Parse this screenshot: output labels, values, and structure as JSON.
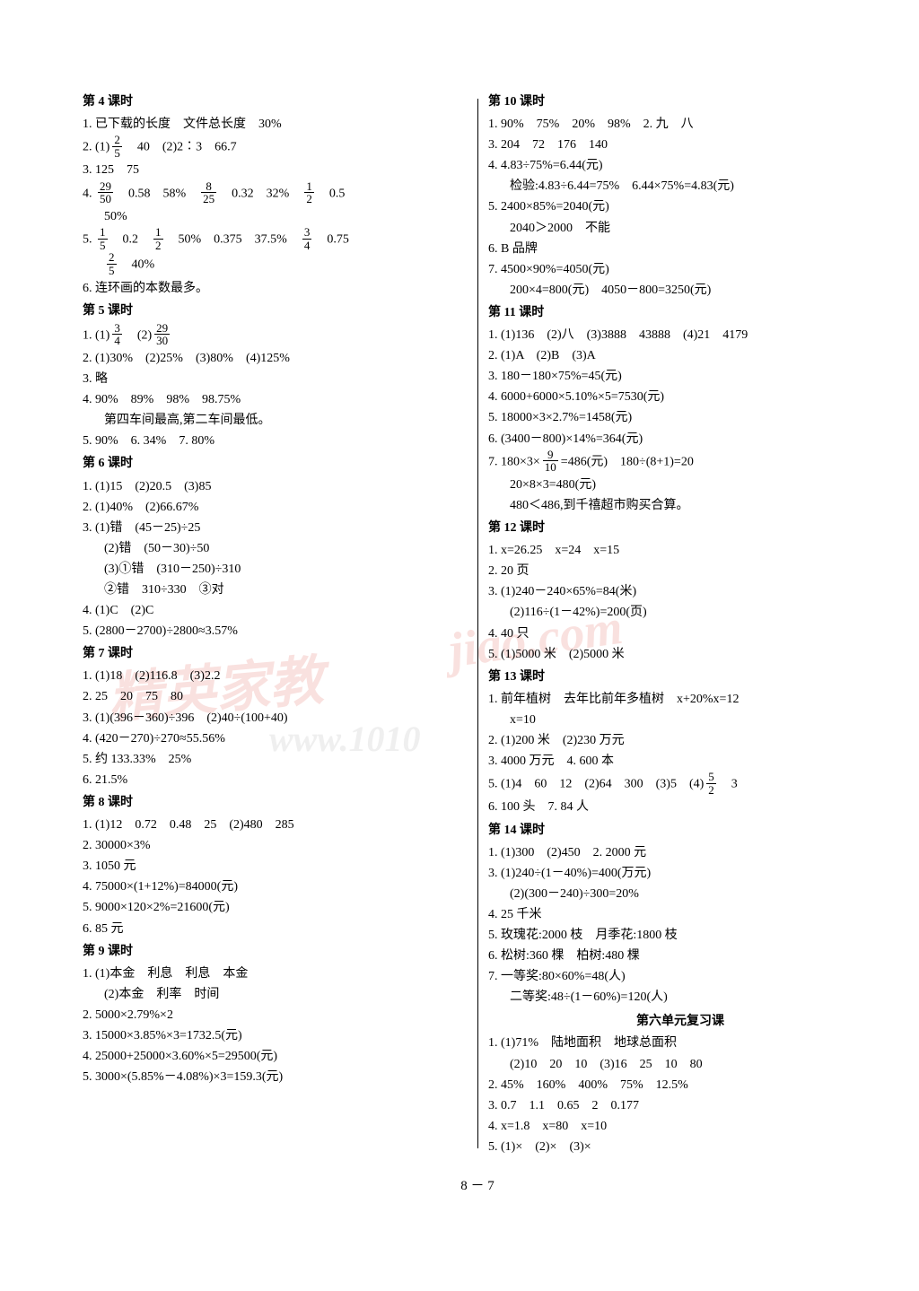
{
  "footer": "8 － 7",
  "unit6_title": "第六单元复习课",
  "left": {
    "s4": {
      "title": "第 4 课时",
      "l1": "1. 已下载的长度　文件总长度　30%",
      "l2a": "2. (1)",
      "l2b": "　40　(2)2∶3　66.7",
      "l3": "3. 125　75",
      "l4a": "4. ",
      "l4b": "　0.58　58%　",
      "l4c": "　0.32　32%　",
      "l4d": "　0.5",
      "l4e": "50%",
      "l5a": "5. ",
      "l5b": "　0.2　",
      "l5c": "　50%　0.375　37.5%　",
      "l5d": "　0.75",
      "l5e": "　40%",
      "l6": "6. 连环画的本数最多。"
    },
    "s5": {
      "title": "第 5 课时",
      "l1a": "1. (1)",
      "l1b": "　(2)",
      "l2": "2. (1)30%　(2)25%　(3)80%　(4)125%",
      "l3": "3. 略",
      "l4": "4. 90%　89%　98%　98.75%",
      "l4b": "第四车间最高,第二车间最低。",
      "l5": "5. 90%　6. 34%　7. 80%"
    },
    "s6": {
      "title": "第 6 课时",
      "l1": "1. (1)15　(2)20.5　(3)85",
      "l2": "2. (1)40%　(2)66.67%",
      "l3": "3. (1)错　(45－25)÷25",
      "l3b": "(2)错　(50－30)÷50",
      "l3c": "(3)①错　(310－250)÷310",
      "l3d": "②错　310÷330　③对",
      "l4": "4. (1)C　(2)C",
      "l5": "5. (2800－2700)÷2800≈3.57%"
    },
    "s7": {
      "title": "第 7 课时",
      "l1": "1. (1)18　(2)116.8　(3)2.2",
      "l2": "2. 25　20　75　80",
      "l3": "3. (1)(396－360)÷396　(2)40÷(100+40)",
      "l4": "4. (420－270)÷270≈55.56%",
      "l5": "5. 约 133.33%　25%",
      "l6": "6. 21.5%"
    },
    "s8": {
      "title": "第 8 课时",
      "l1": "1. (1)12　0.72　0.48　25　(2)480　285",
      "l2": "2. 30000×3%",
      "l3": "3. 1050 元",
      "l4": "4. 75000×(1+12%)=84000(元)",
      "l5": "5. 9000×120×2%=21600(元)",
      "l6": "6. 85 元"
    },
    "s9": {
      "title": "第 9 课时",
      "l1": "1. (1)本金　利息　利息　本金",
      "l1b": "(2)本金　利率　时间",
      "l2": "2. 5000×2.79%×2",
      "l3": "3. 15000×3.85%×3=1732.5(元)",
      "l4": "4. 25000+25000×3.60%×5=29500(元)",
      "l5": "5. 3000×(5.85%－4.08%)×3=159.3(元)"
    }
  },
  "right": {
    "s10": {
      "title": "第 10 课时",
      "l1": "1. 90%　75%　20%　98%　2. 九　八",
      "l3": "3. 204　72　176　140",
      "l4": "4. 4.83÷75%=6.44(元)",
      "l4b": "检验:4.83÷6.44=75%　6.44×75%=4.83(元)",
      "l5": "5. 2400×85%=2040(元)",
      "l5b": "2040＞2000　不能",
      "l6": "6. B 品牌",
      "l7": "7. 4500×90%=4050(元)",
      "l7b": "200×4=800(元)　4050－800=3250(元)"
    },
    "s11": {
      "title": "第 11 课时",
      "l1": "1. (1)136　(2)八　(3)3888　43888　(4)21　4179",
      "l2": "2. (1)A　(2)B　(3)A",
      "l3": "3. 180－180×75%=45(元)",
      "l4": "4. 6000+6000×5.10%×5=7530(元)",
      "l5": "5. 18000×3×2.7%=1458(元)",
      "l6": "6. (3400－800)×14%=364(元)",
      "l7a": "7. 180×3×",
      "l7b": "=486(元)　180÷(8+1)=20",
      "l7c": "20×8×3=480(元)",
      "l7d": "480＜486,到千禧超市购买合算。"
    },
    "s12": {
      "title": "第 12 课时",
      "l1": "1. x=26.25　x=24　x=15",
      "l2": "2. 20 页",
      "l3": "3. (1)240－240×65%=84(米)",
      "l3b": "(2)116÷(1－42%)=200(页)",
      "l4": "4. 40 只",
      "l5": "5. (1)5000 米　(2)5000 米"
    },
    "s13": {
      "title": "第 13 课时",
      "l1": "1. 前年植树　去年比前年多植树　x+20%x=12",
      "l1b": "x=10",
      "l2": "2. (1)200 米　(2)230 万元",
      "l3": "3. 4000 万元　4. 600 本",
      "l5a": "5. (1)4　60　12　(2)64　300　(3)5　(4)",
      "l5b": "　3",
      "l6": "6. 100 头　7. 84 人"
    },
    "s14": {
      "title": "第 14 课时",
      "l1": "1. (1)300　(2)450　2. 2000 元",
      "l3": "3. (1)240÷(1－40%)=400(万元)",
      "l3b": "(2)(300－240)÷300=20%",
      "l4": "4. 25 千米",
      "l5": "5. 玫瑰花:2000 枝　月季花:1800 枝",
      "l6": "6. 松树:360 棵　柏树:480 棵",
      "l7": "7. 一等奖:80×60%=48(人)",
      "l7b": "二等奖:48÷(1－60%)=120(人)"
    },
    "rev": {
      "l1": "1. (1)71%　陆地面积　地球总面积",
      "l1b": "(2)10　20　10　(3)16　25　10　80",
      "l2": "2. 45%　160%　400%　75%　12.5%",
      "l3": "3. 0.7　1.1　0.65　2　0.177",
      "l4": "4. x=1.8　x=80　x=10",
      "l5": "5. (1)×　(2)×　(3)×"
    }
  },
  "fractions": {
    "f2_5": {
      "n": "2",
      "d": "5"
    },
    "f29_50": {
      "n": "29",
      "d": "50"
    },
    "f8_25": {
      "n": "8",
      "d": "25"
    },
    "f1_2": {
      "n": "1",
      "d": "2"
    },
    "f1_5": {
      "n": "1",
      "d": "5"
    },
    "f3_4": {
      "n": "3",
      "d": "4"
    },
    "f29_30": {
      "n": "29",
      "d": "30"
    },
    "f9_10": {
      "n": "9",
      "d": "10"
    },
    "f5_2": {
      "n": "5",
      "d": "2"
    }
  }
}
